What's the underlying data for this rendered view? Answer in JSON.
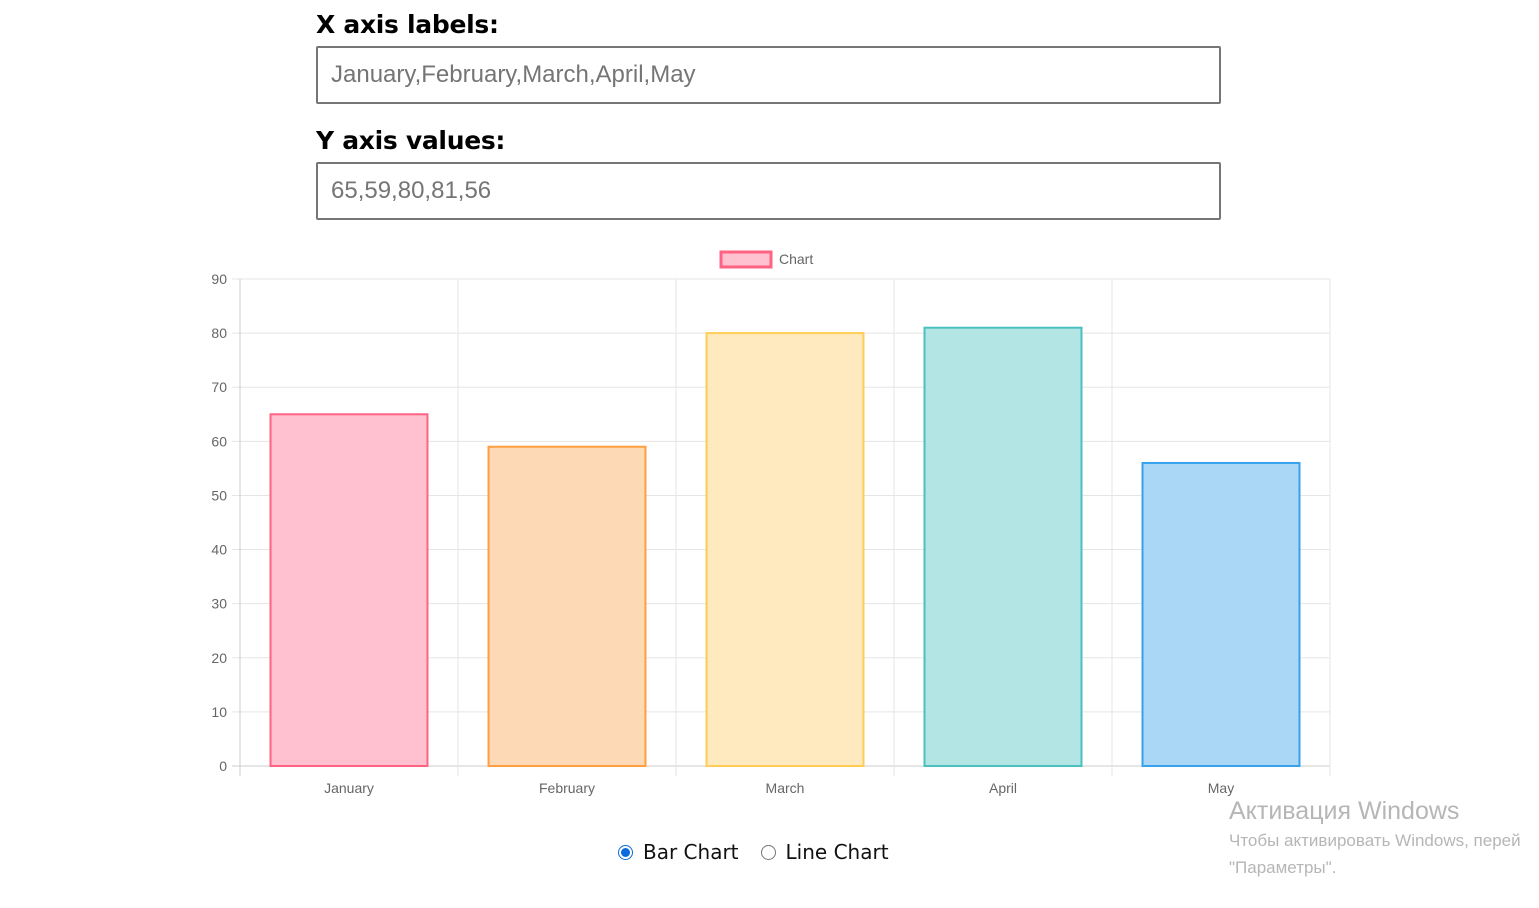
{
  "form": {
    "x_label": "X axis labels:",
    "x_value": "",
    "x_placeholder": "January,February,March,April,May",
    "y_label": "Y axis values:",
    "y_value": "",
    "y_placeholder": "65,59,80,81,56"
  },
  "chart_data": {
    "type": "bar",
    "categories": [
      "January",
      "February",
      "March",
      "April",
      "May"
    ],
    "series": [
      {
        "name": "Chart",
        "values": [
          65,
          59,
          80,
          81,
          56
        ],
        "fill_colors": [
          "#ffc1cf",
          "#fed9b5",
          "#feeabe",
          "#b4e5e5",
          "#abd7f7"
        ],
        "border_colors": [
          "#ff6384",
          "#ff9f40",
          "#ffcd56",
          "#4bc0c0",
          "#36a2eb"
        ]
      }
    ],
    "ylim": [
      0,
      90
    ],
    "yticks": [
      0,
      10,
      20,
      30,
      40,
      50,
      60,
      70,
      80,
      90
    ],
    "grid": true,
    "legend": "top-center",
    "legend_swatch_fill": "#ffc1cf",
    "legend_swatch_border": "#ff6384"
  },
  "chart_options": {
    "selected": "bar",
    "bar_label": "Bar Chart",
    "line_label": "Line Chart"
  },
  "watermark": {
    "title": "Активация Windows",
    "line1": "Чтобы активировать Windows, перей",
    "line2": "\"Параметры\"."
  }
}
